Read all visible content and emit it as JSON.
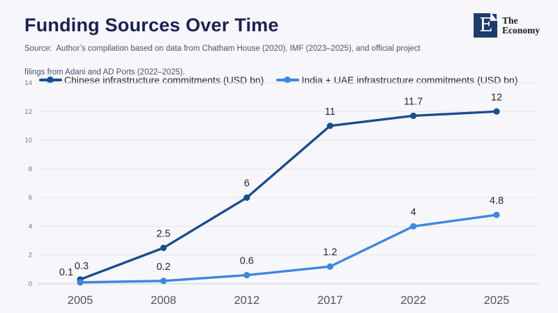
{
  "header": {
    "title": "Funding Sources Over Time",
    "source_line1": "Source:  Author’s compilation based on data from Chatham House (2020), IMF (2023–2025), and official project",
    "source_line2": "filings from Adani and AD Ports (2022–2025)."
  },
  "logo": {
    "monogram": "E",
    "name_line1": "The",
    "name_line2": "Economy",
    "box_color": "#1e3c6b"
  },
  "chart_data": {
    "type": "line",
    "title": "Funding Sources Over Time",
    "categories": [
      "2005",
      "2008",
      "2012",
      "2017",
      "2022",
      "2025"
    ],
    "series": [
      {
        "name": "Chinese infrastructure commitments (USD bn)",
        "color": "#1b4e8c",
        "values": [
          0.3,
          2.5,
          6,
          11,
          11.7,
          12
        ],
        "point_labels": [
          "0.3",
          "2.5",
          "6",
          "11",
          "11.7",
          "12"
        ]
      },
      {
        "name": "India + UAE infrastructure commitments (USD bn)",
        "color": "#3f86df",
        "values": [
          0.1,
          0.2,
          0.6,
          1.2,
          4,
          4.8
        ],
        "point_labels": [
          "0.1",
          "0.2",
          "0.6",
          "1.2",
          "4",
          "4.8"
        ]
      }
    ],
    "xlabel": "",
    "ylabel": "",
    "ylim": [
      0,
      14
    ],
    "yticks": [
      0,
      2,
      4,
      6,
      8,
      10,
      12,
      14
    ],
    "grid": "horizontal",
    "legend_position": "top"
  }
}
